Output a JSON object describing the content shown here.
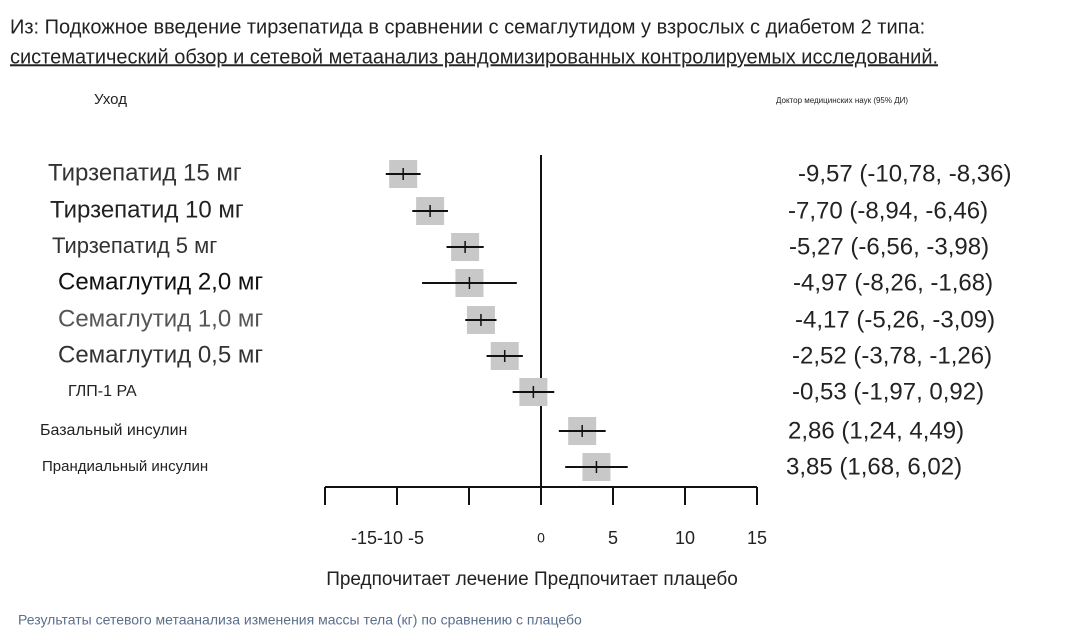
{
  "chart_data": {
    "type": "forest",
    "title_lines": [
      "Из: Подкожное введение тирзепатида в сравнении с семаглутидом у взрослых с диабетом 2 типа:",
      "систематический обзор и сетевой метаанализ рандомизированных контролируемых исследований."
    ],
    "category_header": "Уход",
    "value_header": "Доктор медицинских наук (95% ДИ)",
    "categories": [
      "Тирзепатид 15 мг",
      "Тирзепатид 10 мг",
      "Тирзепатид 5 мг",
      "Семаглутид 2,0 мг",
      "Семаглутид 1,0 мг",
      "Семаглутид 0,5 мг",
      "ГЛП-1 РА",
      "Базальный инсулин",
      "Прандиальный инсулин"
    ],
    "values": [
      -9.57,
      -7.7,
      -5.27,
      -4.97,
      -4.17,
      -2.52,
      -0.53,
      2.86,
      3.85
    ],
    "lower": [
      -10.78,
      -8.94,
      -6.56,
      -8.26,
      -5.26,
      -3.78,
      -1.97,
      1.24,
      1.68
    ],
    "upper": [
      -8.36,
      -6.46,
      -3.98,
      -1.68,
      -3.09,
      -1.26,
      0.92,
      4.49,
      6.02
    ],
    "value_labels": [
      "-9,57 (-10,78, -8,36)",
      "-7,70 (-8,94, -6,46)",
      "-5,27 (-6,56, -3,98)",
      "-4,97 (-8,26, -1,68)",
      "-4,17 (-5,26, -3,09)",
      "-2,52 (-3,78, -1,26)",
      "-0,53 (-1,97, 0,92)",
      "2,86 (1,24, 4,49)",
      "3,85 (1,68, 6,02)"
    ],
    "xlim": [
      -15,
      15
    ],
    "xticks": [
      -15,
      -10,
      -5,
      0,
      5,
      10,
      15
    ],
    "xlabel": "Предпочитает лечение Предпочитает плацебо",
    "box_color": "#c8c8c8",
    "caption": "Результаты сетевого метаанализа изменения массы тела (кг) по сравнению с плацебо"
  }
}
